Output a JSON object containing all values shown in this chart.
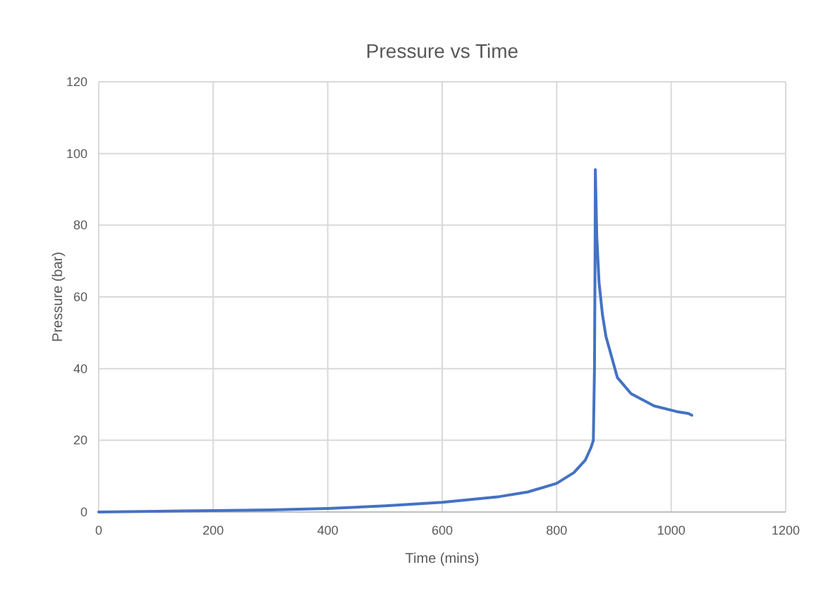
{
  "chart_data": {
    "type": "line",
    "title": "Pressure vs Time",
    "xlabel": "Time (mins)",
    "ylabel": "Pressure (bar)",
    "xlim": [
      0,
      1200
    ],
    "xticks": [
      0,
      200,
      400,
      600,
      800,
      1000,
      1200
    ],
    "ylim": [
      0,
      120
    ],
    "yticks": [
      0,
      20,
      40,
      60,
      80,
      100,
      120
    ],
    "grid": true,
    "series": [
      {
        "color": "#4472c4",
        "x": [
          0,
          100,
          200,
          300,
          400,
          500,
          600,
          700,
          750,
          800,
          830,
          850,
          860,
          864,
          866,
          867,
          867.5,
          870,
          874,
          880,
          886,
          906,
          930,
          970,
          1010,
          1030,
          1036
        ],
        "values": [
          0,
          0.2,
          0.4,
          0.6,
          1,
          1.7,
          2.7,
          4.3,
          5.6,
          8,
          11,
          14.5,
          18,
          20,
          40,
          70,
          95.5,
          77,
          64,
          55,
          49,
          37.5,
          33,
          29.6,
          28,
          27.5,
          27
        ]
      }
    ]
  }
}
